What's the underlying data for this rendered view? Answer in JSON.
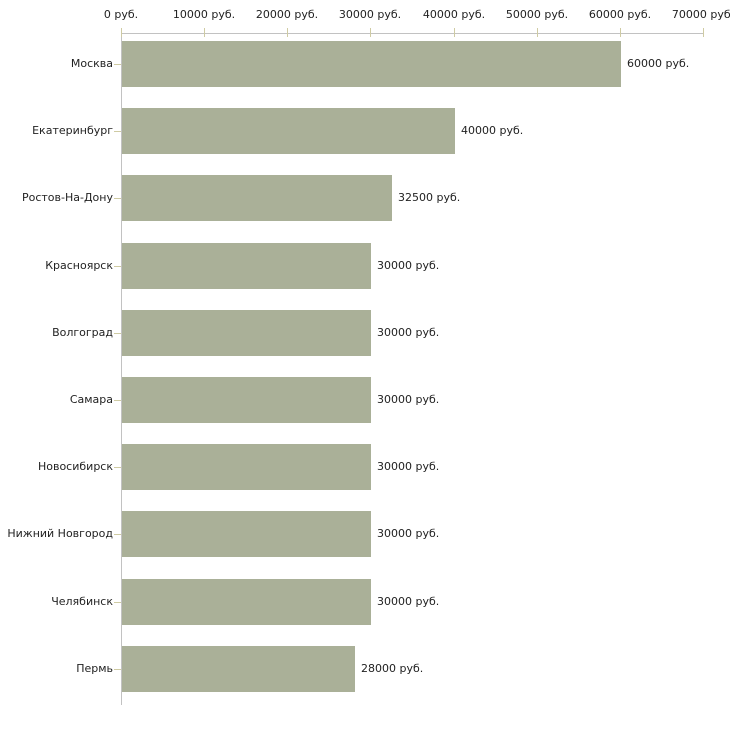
{
  "chart_data": {
    "type": "bar",
    "orientation": "horizontal",
    "title": "",
    "xlabel": "",
    "ylabel": "",
    "unit": "руб.",
    "xlim": [
      0,
      70000
    ],
    "x_tick_step": 10000,
    "x_tick_labels": [
      "0 руб.",
      "10000 руб.",
      "20000 руб.",
      "30000 руб.",
      "40000 руб.",
      "50000 руб.",
      "60000 руб.",
      "70000 руб."
    ],
    "categories": [
      "Москва",
      "Екатеринбург",
      "Ростов-На-Дону",
      "Красноярск",
      "Волгоград",
      "Самара",
      "Новосибирск",
      "Нижний Новгород",
      "Челябинск",
      "Пермь"
    ],
    "values": [
      60000,
      40000,
      32500,
      30000,
      30000,
      30000,
      30000,
      30000,
      30000,
      28000
    ],
    "bar_value_labels": [
      "60000 руб.",
      "40000 руб.",
      "32500 руб.",
      "30000 руб.",
      "30000 руб.",
      "30000 руб.",
      "30000 руб.",
      "30000 руб.",
      "30000 руб.",
      "28000 руб."
    ],
    "grid": false,
    "legend": null,
    "colors": {
      "bar": "#aab098",
      "axis_line": "#c2c2c2",
      "tick_mark": "#cfcba3",
      "text": "#222222",
      "background": "#ffffff"
    }
  }
}
